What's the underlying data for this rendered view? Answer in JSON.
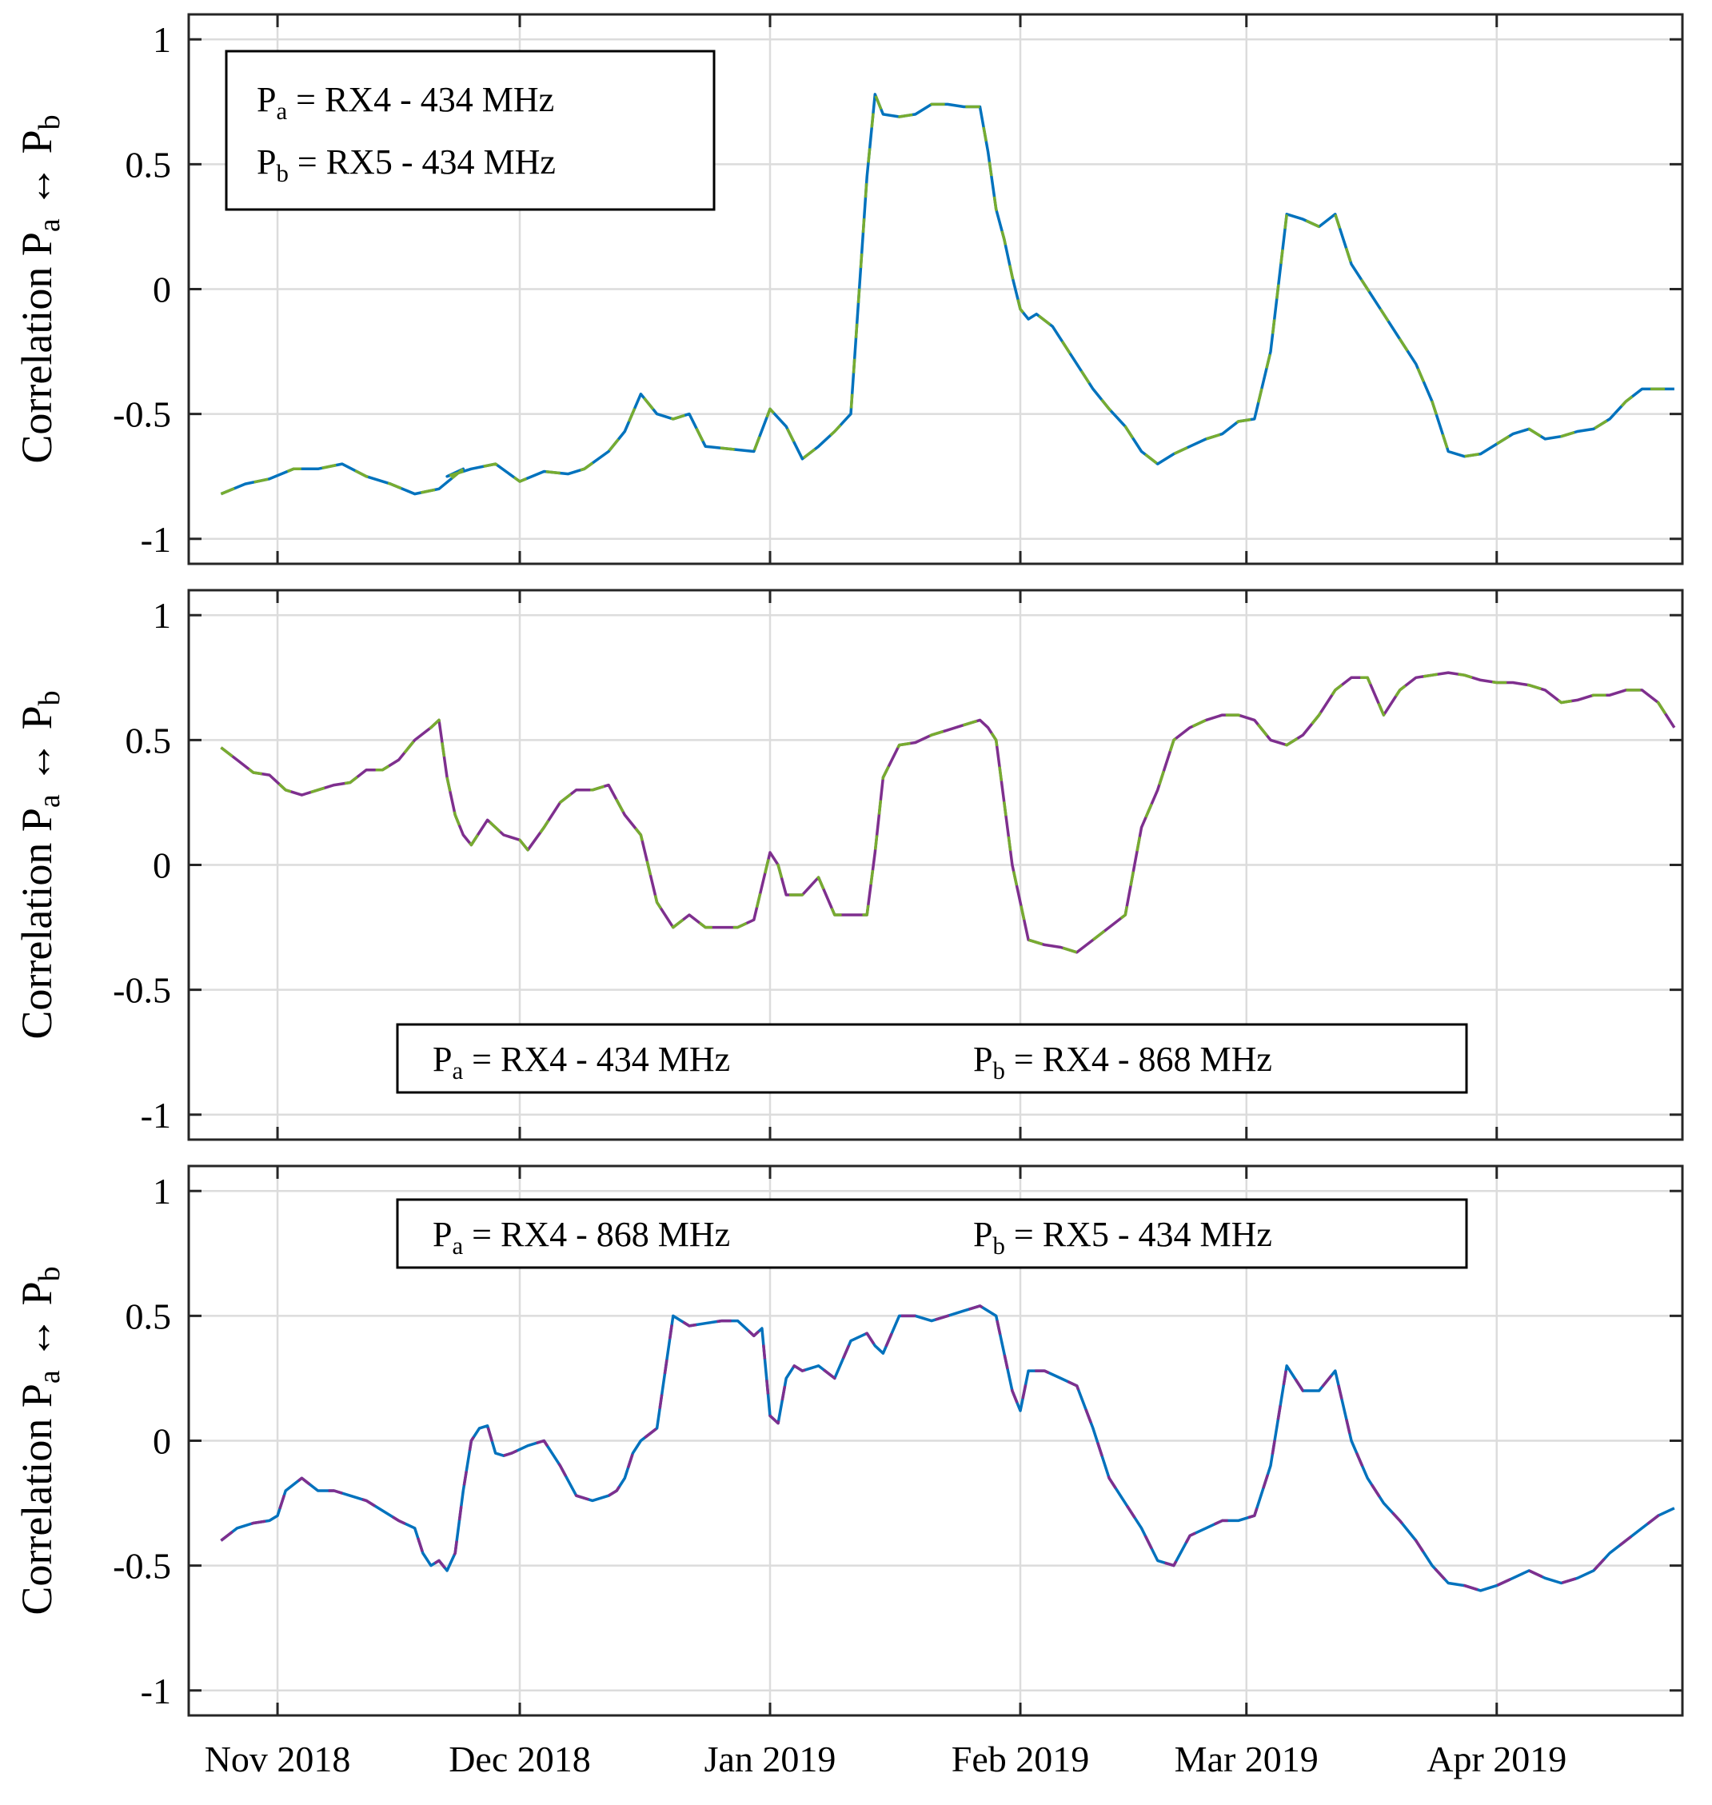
{
  "colors": {
    "blue": "#0072bd",
    "green": "#77ac30",
    "purple": "#7e2f8e",
    "grid": "#dcdcdc",
    "axis": "#262626"
  },
  "chart_data": [
    {
      "type": "line",
      "ylabel": "Correlation Pa ↔ Pb",
      "ylim": [
        -1.1,
        1.1
      ],
      "yticks": [
        1,
        0.5,
        0,
        -0.5,
        -1
      ],
      "ytick_labels": [
        "1",
        "0.5",
        "0",
        "-0.5",
        "-1"
      ],
      "xtick_labels": [
        "Nov 2018",
        "Dec 2018",
        "Jan 2019",
        "Feb 2019",
        "Mar 2019",
        "Apr 2019"
      ],
      "xtick_days": [
        7,
        37,
        68,
        99,
        127,
        158
      ],
      "xlim": [
        -4,
        181
      ],
      "legend": {
        "position": "top-left",
        "line1": "Pa = RX4 - 434 MHz",
        "line2": "Pb = RX5 - 434 MHz"
      },
      "series": [
        {
          "name": "Pa = RX4 - 434 MHz",
          "color": "blue",
          "dash_color": "green",
          "x": [
            0,
            3,
            6,
            9,
            12,
            15,
            18,
            21,
            24,
            27,
            30,
            28,
            31,
            34,
            37,
            40,
            43,
            45,
            48,
            50,
            52,
            54,
            56,
            58,
            60,
            63,
            66,
            68,
            70,
            72,
            74,
            76,
            78,
            80,
            81,
            82,
            84,
            86,
            88,
            90,
            92,
            94,
            95,
            96,
            97,
            98,
            99,
            100,
            101,
            103,
            106,
            108,
            110,
            112,
            114,
            116,
            118,
            120,
            122,
            124,
            126,
            128,
            130,
            132,
            134,
            136,
            138,
            140,
            142,
            144,
            146,
            148,
            150,
            152,
            154,
            156,
            158,
            160,
            162,
            164,
            166,
            168,
            170,
            172,
            174,
            176,
            178,
            180
          ],
          "y": [
            -0.82,
            -0.78,
            -0.76,
            -0.72,
            -0.72,
            -0.7,
            -0.75,
            -0.78,
            -0.82,
            -0.8,
            -0.72,
            -0.75,
            -0.72,
            -0.7,
            -0.77,
            -0.73,
            -0.74,
            -0.72,
            -0.65,
            -0.57,
            -0.42,
            -0.5,
            -0.52,
            -0.5,
            -0.63,
            -0.64,
            -0.65,
            -0.48,
            -0.55,
            -0.68,
            -0.63,
            -0.57,
            -0.5,
            0.45,
            0.78,
            0.7,
            0.69,
            0.7,
            0.74,
            0.74,
            0.73,
            0.73,
            0.55,
            0.32,
            0.2,
            0.05,
            -0.08,
            -0.12,
            -0.1,
            -0.15,
            -0.3,
            -0.4,
            -0.48,
            -0.55,
            -0.65,
            -0.7,
            -0.66,
            -0.63,
            -0.6,
            -0.58,
            -0.53,
            -0.52,
            -0.25,
            0.3,
            0.28,
            0.25,
            0.3,
            0.1,
            0.0,
            -0.1,
            -0.2,
            -0.3,
            -0.45,
            -0.65,
            -0.67,
            -0.66,
            -0.62,
            -0.58,
            -0.56,
            -0.6,
            -0.59,
            -0.57,
            -0.56,
            -0.52,
            -0.45,
            -0.4,
            -0.4,
            -0.4
          ]
        }
      ]
    },
    {
      "type": "line",
      "ylabel": "Correlation Pa ↔ Pb",
      "ylim": [
        -1.1,
        1.1
      ],
      "yticks": [
        1,
        0.5,
        0,
        -0.5,
        -1
      ],
      "ytick_labels": [
        "1",
        "0.5",
        "0",
        "-0.5",
        "-1"
      ],
      "xtick_labels": [
        "Nov 2018",
        "Dec 2018",
        "Jan 2019",
        "Feb 2019",
        "Mar 2019",
        "Apr 2019"
      ],
      "xtick_days": [
        7,
        37,
        68,
        99,
        127,
        158
      ],
      "xlim": [
        -4,
        181
      ],
      "legend": {
        "position": "bottom-center",
        "line1": "Pa = RX4 - 434 MHz",
        "line2": "Pb = RX4 - 868 MHz"
      },
      "series": [
        {
          "name": "Pa = RX4 - 434 MHz ↔ Pb = RX4 - 868 MHz",
          "color": "purple",
          "dash_color": "green",
          "x": [
            0,
            2,
            4,
            6,
            8,
            10,
            12,
            14,
            16,
            18,
            20,
            22,
            24,
            26,
            27,
            28,
            29,
            30,
            31,
            33,
            35,
            37,
            38,
            40,
            42,
            44,
            46,
            48,
            50,
            52,
            54,
            56,
            58,
            60,
            62,
            64,
            66,
            68,
            69,
            70,
            72,
            74,
            76,
            78,
            80,
            81,
            82,
            84,
            86,
            88,
            90,
            92,
            94,
            95,
            96,
            97,
            98,
            100,
            102,
            104,
            106,
            108,
            110,
            112,
            114,
            116,
            118,
            120,
            122,
            124,
            126,
            128,
            130,
            132,
            134,
            136,
            138,
            140,
            142,
            144,
            146,
            148,
            150,
            152,
            154,
            156,
            158,
            160,
            162,
            164,
            166,
            168,
            170,
            172,
            174,
            176,
            178,
            180
          ],
          "y": [
            0.47,
            0.42,
            0.37,
            0.36,
            0.3,
            0.28,
            0.3,
            0.32,
            0.33,
            0.38,
            0.38,
            0.42,
            0.5,
            0.55,
            0.58,
            0.35,
            0.2,
            0.12,
            0.08,
            0.18,
            0.12,
            0.1,
            0.06,
            0.15,
            0.25,
            0.3,
            0.3,
            0.32,
            0.2,
            0.12,
            -0.15,
            -0.25,
            -0.2,
            -0.25,
            -0.25,
            -0.25,
            -0.22,
            0.05,
            0.0,
            -0.12,
            -0.12,
            -0.05,
            -0.2,
            -0.2,
            -0.2,
            0.05,
            0.35,
            0.48,
            0.49,
            0.52,
            0.54,
            0.56,
            0.58,
            0.55,
            0.5,
            0.25,
            0.0,
            -0.3,
            -0.32,
            -0.33,
            -0.35,
            -0.3,
            -0.25,
            -0.2,
            0.15,
            0.3,
            0.5,
            0.55,
            0.58,
            0.6,
            0.6,
            0.58,
            0.5,
            0.48,
            0.52,
            0.6,
            0.7,
            0.75,
            0.75,
            0.6,
            0.7,
            0.75,
            0.76,
            0.77,
            0.76,
            0.74,
            0.73,
            0.73,
            0.72,
            0.7,
            0.65,
            0.66,
            0.68,
            0.68,
            0.7,
            0.7,
            0.65,
            0.55
          ]
        }
      ]
    },
    {
      "type": "line",
      "ylabel": "Correlation Pa ↔ Pb",
      "ylim": [
        -1.1,
        1.1
      ],
      "yticks": [
        1,
        0.5,
        0,
        -0.5,
        -1
      ],
      "ytick_labels": [
        "1",
        "0.5",
        "0",
        "-0.5",
        "-1"
      ],
      "xtick_labels": [
        "Nov 2018",
        "Dec 2018",
        "Jan 2019",
        "Feb 2019",
        "Mar 2019",
        "Apr 2019"
      ],
      "xtick_days": [
        7,
        37,
        68,
        99,
        127,
        158
      ],
      "xlim": [
        -4,
        181
      ],
      "legend": {
        "position": "top-center",
        "line1": "Pa = RX4 - 868 MHz",
        "line2": "Pb = RX5 - 434 MHz"
      },
      "series": [
        {
          "name": "Pa = RX4 - 868 MHz ↔ Pb = RX5 - 434 MHz",
          "color": "blue",
          "dash_color": "purple",
          "x": [
            0,
            2,
            4,
            6,
            7,
            8,
            10,
            12,
            14,
            16,
            18,
            20,
            22,
            24,
            25,
            26,
            27,
            28,
            29,
            30,
            31,
            32,
            33,
            34,
            35,
            36,
            38,
            40,
            41,
            42,
            44,
            46,
            48,
            49,
            50,
            51,
            52,
            54,
            56,
            58,
            60,
            62,
            64,
            66,
            67,
            68,
            69,
            70,
            71,
            72,
            74,
            76,
            78,
            80,
            81,
            82,
            84,
            86,
            88,
            90,
            92,
            94,
            96,
            98,
            99,
            100,
            102,
            104,
            106,
            108,
            110,
            112,
            114,
            116,
            118,
            120,
            122,
            124,
            126,
            128,
            130,
            132,
            134,
            136,
            138,
            140,
            142,
            144,
            146,
            148,
            150,
            152,
            154,
            156,
            158,
            160,
            162,
            164,
            166,
            168,
            170,
            172,
            174,
            176,
            178,
            180
          ],
          "y": [
            -0.4,
            -0.35,
            -0.33,
            -0.32,
            -0.3,
            -0.2,
            -0.15,
            -0.2,
            -0.2,
            -0.22,
            -0.24,
            -0.28,
            -0.32,
            -0.35,
            -0.45,
            -0.5,
            -0.48,
            -0.52,
            -0.45,
            -0.2,
            0.0,
            0.05,
            0.06,
            -0.05,
            -0.06,
            -0.05,
            -0.02,
            0.0,
            -0.05,
            -0.1,
            -0.22,
            -0.24,
            -0.22,
            -0.2,
            -0.15,
            -0.05,
            0.0,
            0.05,
            0.5,
            0.46,
            0.47,
            0.48,
            0.48,
            0.42,
            0.45,
            0.1,
            0.07,
            0.25,
            0.3,
            0.28,
            0.3,
            0.25,
            0.4,
            0.43,
            0.38,
            0.35,
            0.5,
            0.5,
            0.48,
            0.5,
            0.52,
            0.54,
            0.5,
            0.2,
            0.12,
            0.28,
            0.28,
            0.25,
            0.22,
            0.05,
            -0.15,
            -0.25,
            -0.35,
            -0.48,
            -0.5,
            -0.38,
            -0.35,
            -0.32,
            -0.32,
            -0.3,
            -0.1,
            0.3,
            0.2,
            0.2,
            0.28,
            0.0,
            -0.15,
            -0.25,
            -0.32,
            -0.4,
            -0.5,
            -0.57,
            -0.58,
            -0.6,
            -0.58,
            -0.55,
            -0.52,
            -0.55,
            -0.57,
            -0.55,
            -0.52,
            -0.45,
            -0.4,
            -0.35,
            -0.3,
            -0.27
          ]
        }
      ]
    }
  ]
}
